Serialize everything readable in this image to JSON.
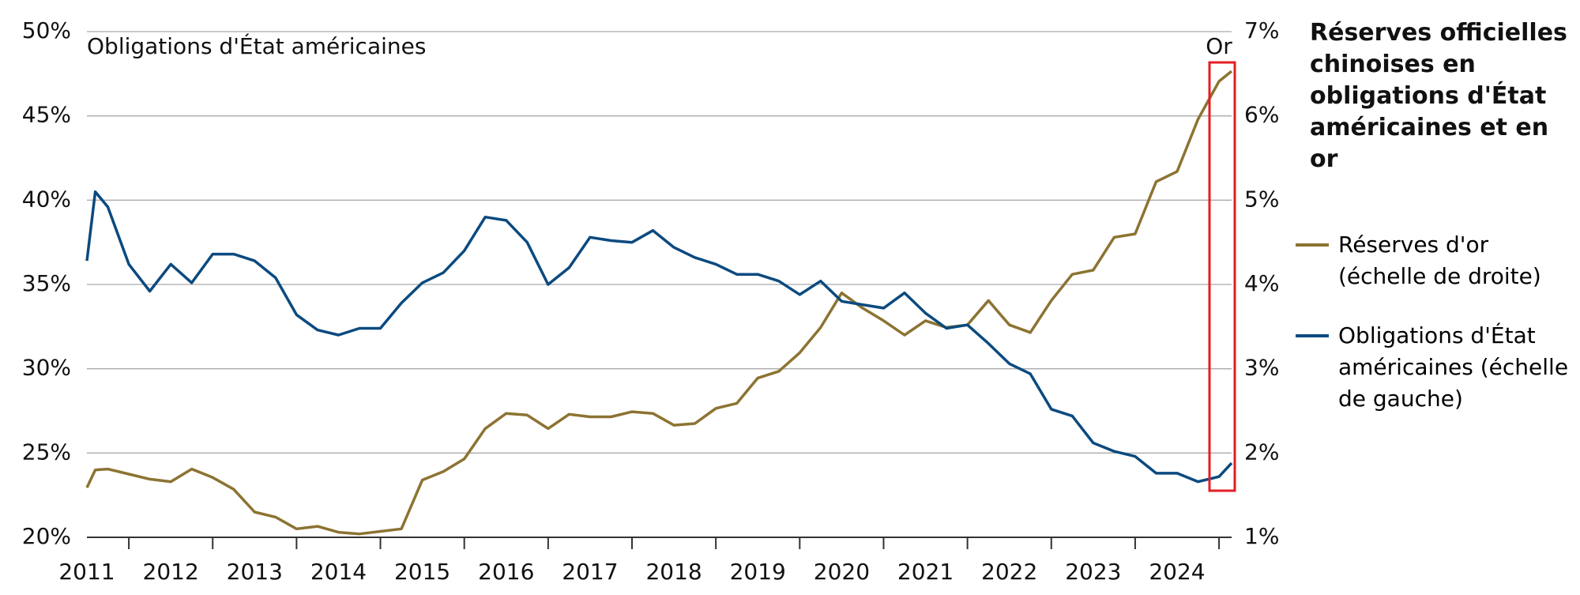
{
  "chart_data": {
    "type": "line",
    "title": "Réserves officielles chinoises en obligations d'État américaines et en or",
    "annotations": [
      "Obligations d'État américaines",
      "Or"
    ],
    "x": [
      2011.5,
      2011.6,
      2011.75,
      2012.0,
      2012.25,
      2012.5,
      2012.75,
      2013.0,
      2013.25,
      2013.5,
      2013.75,
      2014.0,
      2014.25,
      2014.5,
      2014.75,
      2015.0,
      2015.25,
      2015.5,
      2015.75,
      2016.0,
      2016.25,
      2016.5,
      2016.75,
      2017.0,
      2017.25,
      2017.5,
      2017.75,
      2018.0,
      2018.25,
      2018.5,
      2018.75,
      2019.0,
      2019.25,
      2019.5,
      2019.75,
      2020.0,
      2020.25,
      2020.5,
      2020.75,
      2021.0,
      2021.25,
      2021.5,
      2021.75,
      2022.0,
      2022.25,
      2022.5,
      2022.75,
      2023.0,
      2023.25,
      2023.5,
      2023.75,
      2024.0,
      2024.25,
      2024.5,
      2024.75,
      2025.0,
      2025.15
    ],
    "xlim": [
      2011.5,
      2025.15
    ],
    "xticks": [
      2011,
      2012,
      2013,
      2014,
      2015,
      2016,
      2017,
      2018,
      2019,
      2020,
      2021,
      2022,
      2023,
      2024
    ],
    "ylim": [
      20,
      50
    ],
    "yticks": [
      {
        "value": 20,
        "label": "20%"
      },
      {
        "value": 25,
        "label": "25%"
      },
      {
        "value": 30,
        "label": "30%"
      },
      {
        "value": 35,
        "label": "35%"
      },
      {
        "value": 40,
        "label": "40%"
      },
      {
        "value": 45,
        "label": "45%"
      },
      {
        "value": 50,
        "label": "50%"
      }
    ],
    "y2lim": [
      1,
      7
    ],
    "y2ticks": [
      {
        "value": 1,
        "label": "1%"
      },
      {
        "value": 2,
        "label": "2%"
      },
      {
        "value": 3,
        "label": "3%"
      },
      {
        "value": 4,
        "label": "4%"
      },
      {
        "value": 5,
        "label": "5%"
      },
      {
        "value": 6,
        "label": "6%"
      },
      {
        "value": 7,
        "label": "7%"
      }
    ],
    "grid": true,
    "series": [
      {
        "name": "Réserves d'or (échelle de droite)",
        "color": "#8c7332",
        "axis": "y2",
        "values": [
          1.59,
          1.8,
          1.81,
          1.75,
          1.69,
          1.66,
          1.81,
          1.71,
          1.57,
          1.3,
          1.24,
          1.1,
          1.13,
          1.06,
          1.04,
          1.07,
          1.1,
          1.68,
          1.78,
          1.93,
          2.29,
          2.47,
          2.45,
          2.29,
          2.46,
          2.43,
          2.43,
          2.49,
          2.47,
          2.33,
          2.35,
          2.53,
          2.59,
          2.89,
          2.97,
          3.19,
          3.49,
          3.9,
          3.72,
          3.57,
          3.4,
          3.57,
          3.49,
          3.52,
          3.81,
          3.52,
          3.43,
          3.81,
          4.12,
          4.17,
          4.56,
          4.6,
          5.22,
          5.34,
          5.96,
          6.41,
          6.53
        ]
      },
      {
        "name": "Obligations d'État américaines (échelle de gauche)",
        "color": "#0b4a7f",
        "axis": "y",
        "values": [
          36.4,
          40.5,
          39.6,
          36.2,
          34.6,
          36.2,
          35.1,
          36.8,
          36.8,
          36.4,
          35.4,
          33.2,
          32.3,
          32.0,
          32.4,
          32.4,
          33.9,
          35.1,
          35.7,
          37.0,
          39.0,
          38.8,
          37.5,
          35.0,
          36.0,
          37.8,
          37.6,
          37.5,
          38.2,
          37.2,
          36.6,
          36.2,
          35.6,
          35.6,
          35.2,
          34.4,
          35.2,
          34.0,
          33.8,
          33.6,
          34.5,
          33.3,
          32.4,
          32.6,
          31.5,
          30.3,
          29.7,
          27.6,
          27.2,
          25.6,
          25.1,
          24.8,
          23.8,
          23.8,
          23.3,
          23.6,
          24.4
        ]
      }
    ]
  }
}
